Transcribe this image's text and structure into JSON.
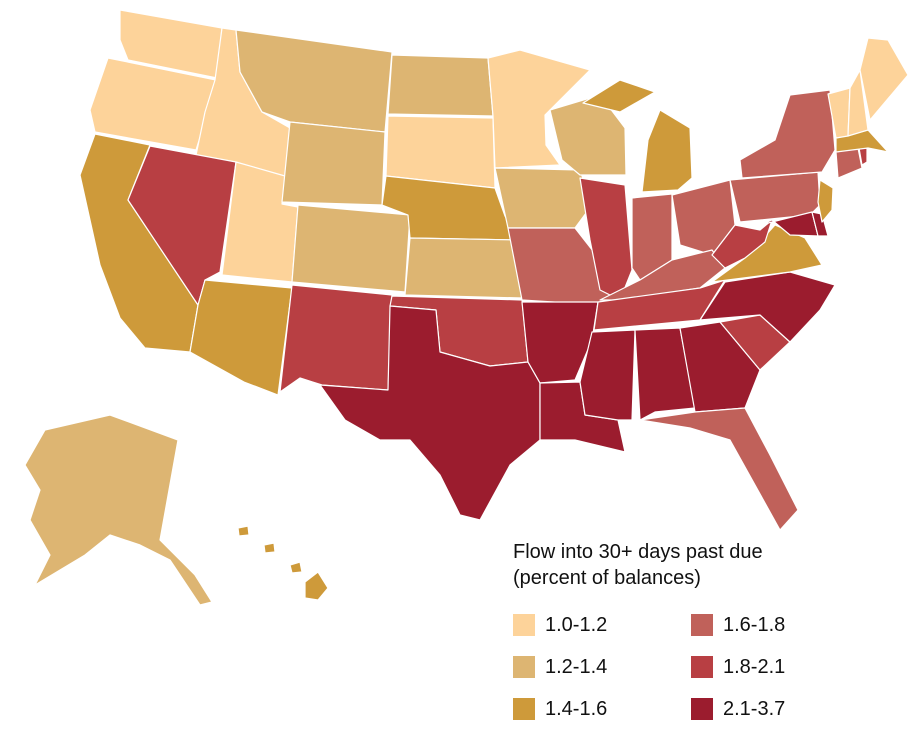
{
  "legend": {
    "title_line1": "Flow into 30+ days past due",
    "title_line2": "(percent of balances)",
    "bins": [
      {
        "label": "1.0-1.2",
        "color": "#FDD39A"
      },
      {
        "label": "1.2-1.4",
        "color": "#DDB572"
      },
      {
        "label": "1.4-1.6",
        "color": "#CE9A3A"
      },
      {
        "label": "1.6-1.8",
        "color": "#C0615A"
      },
      {
        "label": "1.8-2.1",
        "color": "#B83F43"
      },
      {
        "label": "2.1-3.7",
        "color": "#9B1C2E"
      }
    ]
  },
  "states": {
    "WA": "1.0-1.2",
    "OR": "1.0-1.2",
    "ID": "1.0-1.2",
    "UT": "1.0-1.2",
    "SD": "1.0-1.2",
    "MN": "1.0-1.2",
    "ME": "1.0-1.2",
    "VT": "1.0-1.2",
    "NH": "1.0-1.2",
    "MT": "1.2-1.4",
    "WY": "1.2-1.4",
    "ND": "1.2-1.4",
    "CO": "1.2-1.4",
    "KS": "1.2-1.4",
    "IA": "1.2-1.4",
    "WI": "1.2-1.4",
    "AK": "1.2-1.4",
    "CA": "1.4-1.6",
    "AZ": "1.4-1.6",
    "NE": "1.4-1.6",
    "MI": "1.4-1.6",
    "VA": "1.4-1.6",
    "NJ": "1.4-1.6",
    "MA": "1.4-1.6",
    "HI": "1.4-1.6",
    "MO": "1.6-1.8",
    "IN": "1.6-1.8",
    "OH": "1.6-1.8",
    "KY": "1.6-1.8",
    "PA": "1.6-1.8",
    "NY": "1.6-1.8",
    "CT": "1.6-1.8",
    "FL": "1.6-1.8",
    "NV": "1.8-2.1",
    "NM": "1.8-2.1",
    "OK": "1.8-2.1",
    "IL": "1.8-2.1",
    "TN": "1.8-2.1",
    "WV": "1.8-2.1",
    "SC": "1.8-2.1",
    "RI": "1.8-2.1",
    "TX": "2.1-3.7",
    "AR": "2.1-3.7",
    "LA": "2.1-3.7",
    "MS": "2.1-3.7",
    "AL": "2.1-3.7",
    "GA": "2.1-3.7",
    "NC": "2.1-3.7",
    "MD": "2.1-3.7",
    "DE": "2.1-3.7"
  }
}
